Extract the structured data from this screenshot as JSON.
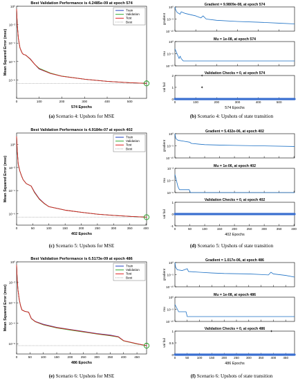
{
  "colors": {
    "train": "#1f3fbf",
    "validation": "#2faa2f",
    "test": "#e02020",
    "best": "#1a9a1a",
    "trace": "#1a6fc4",
    "valfail": "#3a6fd0",
    "axis": "#000000",
    "best_line": "#777777"
  },
  "legend_labels": [
    "Train",
    "Validation",
    "Test",
    "Best"
  ],
  "chart_data": [
    {
      "type": "line",
      "title": "Best Validation Performance is 4.2485e-09 at epoch 574",
      "ylabel": "Mean Squared Error  (mse)",
      "xlabel": "574 Epochs",
      "caption_label": "(a)",
      "caption_text": " Scenario 4: Upshots for MSE",
      "y_scale": "log",
      "ylim": [
        1e-10,
        1
      ],
      "yticks": [
        1,
        0.01,
        0.0001,
        1e-06,
        1e-08
      ],
      "ytick_labels": [
        "10⁰",
        "10⁻²",
        "10⁻⁴",
        "10⁻⁶",
        "10⁻⁸"
      ],
      "xlim": [
        0,
        574
      ],
      "xticks": [
        0,
        100,
        200,
        300,
        400,
        500
      ],
      "xtick_labels": [
        "0",
        "100",
        "200",
        "300",
        "400",
        "500"
      ],
      "legend": "top-right",
      "best": {
        "epoch": 574,
        "value": 4.2485e-09
      },
      "series": [
        {
          "name": "Train",
          "x": [
            0,
            3,
            8,
            15,
            20,
            25,
            30,
            40,
            60,
            80,
            100,
            150,
            200,
            300,
            400,
            500,
            574
          ],
          "y": [
            0.5,
            0.01,
            0.0003,
            3e-05,
            1.5e-05,
            8e-06,
            6e-06,
            5e-06,
            2e-06,
            5e-07,
            1.5e-07,
            5e-08,
            2.5e-08,
            1.2e-08,
            7e-09,
            5e-09,
            4.2e-09
          ]
        },
        {
          "name": "Validation",
          "x": [
            0,
            3,
            8,
            15,
            20,
            25,
            30,
            40,
            60,
            80,
            100,
            150,
            200,
            300,
            400,
            500,
            574
          ],
          "y": [
            0.5,
            0.01,
            0.0003,
            3e-05,
            1.5e-05,
            8e-06,
            6e-06,
            5e-06,
            1.8e-06,
            5e-07,
            1.8e-07,
            5.5e-08,
            2.6e-08,
            1.2e-08,
            7e-09,
            5e-09,
            4.25e-09
          ]
        },
        {
          "name": "Test",
          "x": [
            0,
            3,
            8,
            15,
            20,
            25,
            30,
            40,
            60,
            80,
            100,
            150,
            200,
            300,
            400,
            500,
            574
          ],
          "y": [
            0.5,
            0.01,
            0.0003,
            3e-05,
            1.5e-05,
            8e-06,
            6e-06,
            5e-06,
            1.9e-06,
            5e-07,
            1.6e-07,
            5e-08,
            2.5e-08,
            1.2e-08,
            7e-09,
            5e-09,
            4.3e-09
          ]
        }
      ]
    },
    {
      "type": "line",
      "title": "Best Validation Performance is 4.9184e-07 at epoch 402",
      "ylabel": "Mean Squared Error  (mse)",
      "xlabel": "402 Epochs",
      "caption_label": "(c)",
      "caption_text": " Scenario 5: Upshots for MSE",
      "y_scale": "log",
      "ylim": [
        1e-07,
        10
      ],
      "yticks": [
        1,
        0.01,
        0.0001,
        1e-06
      ],
      "ytick_labels": [
        "10⁰",
        "10⁻²",
        "10⁻⁴",
        "10⁻⁶"
      ],
      "xlim": [
        0,
        402
      ],
      "xticks": [
        0,
        50,
        100,
        150,
        200,
        250,
        300,
        350,
        400
      ],
      "xtick_labels": [
        "0",
        "50",
        "100",
        "150",
        "200",
        "250",
        "300",
        "350",
        "400"
      ],
      "legend": "top-right",
      "best": {
        "epoch": 402,
        "value": 4.9184e-07
      },
      "series": [
        {
          "name": "Train",
          "x": [
            0,
            2,
            5,
            10,
            15,
            20,
            30,
            45,
            55,
            70,
            85,
            100,
            150,
            200,
            250,
            300,
            350,
            402
          ],
          "y": [
            5,
            0.3,
            0.02,
            0.005,
            0.002,
            0.0009,
            0.0004,
            0.00025,
            8e-05,
            2e-05,
            8e-06,
            4e-06,
            2e-06,
            1.3e-06,
            9e-07,
            7e-07,
            5.8e-07,
            4.9e-07
          ]
        },
        {
          "name": "Validation",
          "x": [
            0,
            2,
            5,
            10,
            15,
            20,
            30,
            45,
            55,
            70,
            85,
            100,
            150,
            200,
            250,
            300,
            350,
            402
          ],
          "y": [
            5,
            0.3,
            0.02,
            0.005,
            0.002,
            0.0009,
            0.0004,
            0.00025,
            7e-05,
            1.8e-05,
            7.5e-06,
            4e-06,
            2e-06,
            1.3e-06,
            9e-07,
            7e-07,
            5.8e-07,
            4.92e-07
          ]
        },
        {
          "name": "Test",
          "x": [
            0,
            2,
            5,
            10,
            15,
            20,
            30,
            45,
            55,
            70,
            85,
            100,
            150,
            200,
            250,
            300,
            350,
            402
          ],
          "y": [
            5,
            0.3,
            0.02,
            0.005,
            0.002,
            0.0009,
            0.0004,
            0.00025,
            7.5e-05,
            1.9e-05,
            7.8e-06,
            4e-06,
            2e-06,
            1.3e-06,
            9e-07,
            7e-07,
            5.8e-07,
            4.95e-07
          ]
        }
      ]
    },
    {
      "type": "line",
      "title": "Best Validation Performance is 6.5173e-09 at epoch 486",
      "ylabel": "Mean Squared Error  (mse)",
      "xlabel": "486 Epochs",
      "caption_label": "(e)",
      "caption_text": " Scenario 6: Upshots for MSE",
      "y_scale": "log",
      "ylim": [
        1e-09,
        1
      ],
      "yticks": [
        1,
        0.01,
        0.0001,
        1e-06,
        1e-08
      ],
      "ytick_labels": [
        "10⁰",
        "10⁻²",
        "10⁻⁴",
        "10⁻⁶",
        "10⁻⁸"
      ],
      "xlim": [
        0,
        486
      ],
      "xticks": [
        0,
        50,
        100,
        150,
        200,
        250,
        300,
        350,
        400,
        450
      ],
      "xtick_labels": [
        "0",
        "50",
        "100",
        "150",
        "200",
        "250",
        "300",
        "350",
        "400",
        "450"
      ],
      "legend": "top-right",
      "best": {
        "epoch": 486,
        "value": 6.5173e-09
      },
      "series": [
        {
          "name": "Train",
          "x": [
            0,
            2,
            5,
            10,
            15,
            20,
            30,
            45,
            55,
            70,
            100,
            150,
            200,
            250,
            300,
            350,
            380,
            400,
            450,
            486
          ],
          "y": [
            0.5,
            0.03,
            0.002,
            0.0002,
            5e-05,
            2e-05,
            1.5e-05,
            1.2e-05,
            3e-06,
            1.5e-06,
            8e-07,
            4e-07,
            2.5e-07,
            1.6e-07,
            1e-07,
            7e-08,
            5e-08,
            2e-08,
            1e-08,
            6.5e-09
          ]
        },
        {
          "name": "Validation",
          "x": [
            0,
            2,
            5,
            10,
            15,
            20,
            30,
            45,
            55,
            70,
            100,
            150,
            200,
            250,
            300,
            350,
            380,
            400,
            450,
            486
          ],
          "y": [
            0.5,
            0.03,
            0.002,
            0.0002,
            5e-05,
            2e-05,
            1.5e-05,
            1.2e-05,
            2.8e-06,
            1.4e-06,
            7e-07,
            3.5e-07,
            2.2e-07,
            1.4e-07,
            9e-08,
            6e-08,
            4.5e-08,
            1.9e-08,
            9.5e-09,
            6.5e-09
          ]
        },
        {
          "name": "Test",
          "x": [
            0,
            2,
            5,
            10,
            15,
            20,
            30,
            45,
            55,
            70,
            100,
            150,
            200,
            250,
            300,
            350,
            380,
            400,
            450,
            486
          ],
          "y": [
            0.5,
            0.03,
            0.002,
            0.0002,
            5e-05,
            2e-05,
            1.5e-05,
            1.2e-05,
            2.9e-06,
            1.45e-06,
            7.5e-07,
            3.8e-07,
            2.4e-07,
            1.5e-07,
            9.5e-08,
            6.5e-08,
            4.8e-08,
            2e-08,
            1e-08,
            6.6e-09
          ]
        }
      ]
    },
    {
      "type": "line",
      "caption_label": "(b)",
      "caption_text": " Scenario 4: Upshots of state transition",
      "xlabel": "574 Epochs",
      "xlim": [
        0,
        574
      ],
      "xticks": [
        0,
        100,
        200,
        300,
        400,
        500
      ],
      "xtick_labels": [
        "0",
        "100",
        "200",
        "300",
        "400",
        "500"
      ],
      "subplots": [
        {
          "title": "Gradient = 9.9809e-08, at epoch 574",
          "ylabel": "gradient",
          "y_scale": "log",
          "ylim": [
            1e-10,
            1
          ],
          "yticks": [
            1,
            1e-05,
            1e-10
          ],
          "ytick_labels": [
            "10⁰",
            "10⁻⁵",
            "10⁻¹⁰"
          ],
          "x": [
            0,
            3,
            8,
            15,
            25,
            30,
            50,
            80,
            100,
            125,
            135,
            150,
            200,
            300,
            400,
            500,
            574
          ],
          "y": [
            1,
            0.1,
            0.01,
            0.003,
            0.001,
            0.01,
            0.002,
            0.0005,
            0.0002,
            3e-05,
            0.0002,
            1e-05,
            3e-06,
            1e-06,
            5e-07,
            2e-07,
            1e-07
          ]
        },
        {
          "title": "Mu = 1e-08, at epoch 574",
          "ylabel": "mu",
          "y_scale": "log",
          "ylim": [
            1e-10,
            1
          ],
          "yticks": [
            1,
            1e-05,
            1e-10
          ],
          "ytick_labels": [
            "10⁰",
            "10⁻⁵",
            "10⁻¹⁰"
          ],
          "x": [
            0,
            5,
            10,
            15,
            20,
            25,
            30,
            40,
            574
          ],
          "y": [
            0.001,
            0.0001,
            1e-05,
            1e-06,
            1e-07,
            1e-06,
            1e-07,
            1e-08,
            1e-08
          ]
        },
        {
          "title": "Validation Checks = 0, at epoch 574",
          "ylabel": "val fail",
          "y_scale": "linear",
          "ylim": [
            0,
            2
          ],
          "yticks": [
            0,
            1,
            2
          ],
          "ytick_labels": [
            "0",
            "1",
            "2"
          ],
          "markers": true,
          "x": [
            0,
            574
          ],
          "y": [
            0,
            0
          ],
          "spikes": [
            {
              "x": 130,
              "y": 1
            },
            {
              "x": 130,
              "y": 2
            }
          ]
        }
      ]
    },
    {
      "type": "line",
      "caption_label": "(d)",
      "caption_text": " Scenario 5: Upshots of state transition",
      "xlabel": "402 Epochs",
      "xlim": [
        0,
        402
      ],
      "xticks": [
        0,
        50,
        100,
        150,
        200,
        250,
        300,
        350,
        400
      ],
      "xtick_labels": [
        "0",
        "50",
        "100",
        "150",
        "200",
        "250",
        "300",
        "350",
        "400"
      ],
      "subplots": [
        {
          "title": "Gradient = 5.432e-06, at epoch 402",
          "ylabel": "gradient",
          "y_scale": "log",
          "ylim": [
            1e-10,
            1
          ],
          "yticks": [
            1,
            1e-05,
            1e-10
          ],
          "ytick_labels": [
            "10⁰",
            "10⁻⁵",
            "10⁻¹⁰"
          ],
          "x": [
            0,
            3,
            10,
            30,
            50,
            55,
            80,
            100,
            150,
            200,
            300,
            402
          ],
          "y": [
            1,
            0.01,
            0.002,
            0.0008,
            0.0003,
            0.0001,
            5e-05,
            3e-05,
            2e-05,
            1.5e-05,
            9e-06,
            5.4e-06
          ]
        },
        {
          "title": "Mu = 1e-06, at epoch 402",
          "ylabel": "mu",
          "y_scale": "log",
          "ylim": [
            1e-06,
            0.01
          ],
          "yticks": [
            0.01,
            0.0001,
            1e-06
          ],
          "ytick_labels": [
            "10⁻²",
            "10⁻⁴",
            "10⁻⁶"
          ],
          "x": [
            0,
            5,
            10,
            15,
            48,
            52,
            402
          ],
          "y": [
            0.001,
            0.0001,
            1e-05,
            3e-06,
            3e-06,
            1e-06,
            1e-06
          ]
        },
        {
          "title": "Validation Checks = 0, at epoch 402",
          "ylabel": "val fail",
          "y_scale": "linear",
          "ylim": [
            -1,
            1
          ],
          "yticks": [
            -1,
            0,
            1
          ],
          "ytick_labels": [
            "-1",
            "0",
            "1"
          ],
          "markers": true,
          "x": [
            0,
            402
          ],
          "y": [
            0,
            0
          ],
          "spikes": []
        }
      ]
    },
    {
      "type": "line",
      "caption_label": "(f)",
      "caption_text": " Scenario 6: Upshots of state transition",
      "xlabel": "486 Epochs",
      "xlim": [
        0,
        486
      ],
      "xticks": [
        0,
        50,
        100,
        150,
        200,
        250,
        300,
        350,
        400,
        450
      ],
      "xtick_labels": [
        "0",
        "50",
        "100",
        "150",
        "200",
        "250",
        "300",
        "350",
        "400",
        "450"
      ],
      "subplots": [
        {
          "title": "Gradient = 1.017e-06, at epoch 486",
          "ylabel": "gradient",
          "y_scale": "log",
          "ylim": [
            1e-10,
            1
          ],
          "yticks": [
            1,
            1e-05,
            1e-10
          ],
          "ytick_labels": [
            "10⁰",
            "10⁻⁵",
            "10⁻¹⁰"
          ],
          "x": [
            0,
            3,
            10,
            30,
            50,
            55,
            100,
            150,
            200,
            300,
            380,
            390,
            400,
            450,
            486
          ],
          "y": [
            1,
            0.01,
            0.001,
            0.0005,
            0.003,
            0.0002,
            0.0001,
            5e-05,
            3e-05,
            2e-05,
            8e-06,
            0.0001,
            2e-05,
            5e-06,
            1e-06
          ]
        },
        {
          "title": "Mu = 1e-08, at epoch 486",
          "ylabel": "mu",
          "y_scale": "log",
          "ylim": [
            1e-10,
            1
          ],
          "yticks": [
            1,
            1e-05,
            1e-10
          ],
          "ytick_labels": [
            "10⁰",
            "10⁻⁵",
            "10⁻¹⁰"
          ],
          "x": [
            0,
            5,
            10,
            15,
            20,
            45,
            50,
            55,
            486
          ],
          "y": [
            0.001,
            0.0001,
            1e-05,
            1e-06,
            1e-06,
            1e-06,
            1e-08,
            1e-08,
            1e-08
          ]
        },
        {
          "title": "Validation Checks = 0, at epoch 486",
          "ylabel": "val fail",
          "y_scale": "linear",
          "ylim": [
            0,
            1
          ],
          "yticks": [
            0,
            0.5,
            1
          ],
          "ytick_labels": [
            "0",
            "0.5",
            "1"
          ],
          "markers": true,
          "x": [
            0,
            486
          ],
          "y": [
            0,
            0
          ],
          "spikes": [
            {
              "x": 392,
              "y": 1
            }
          ]
        }
      ]
    }
  ]
}
